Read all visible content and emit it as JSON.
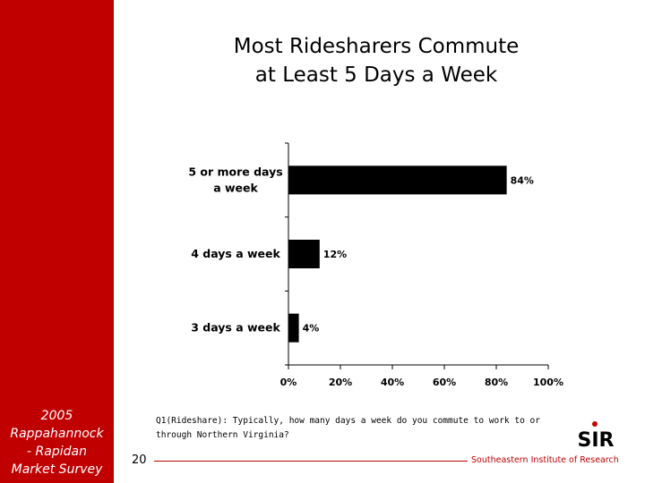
{
  "slide": {
    "title_line1": "Most Ridesharers Commute",
    "title_line2": "at Least 5 Days a Week",
    "sidebar_caption": [
      "2005",
      "Rappahannock",
      "- Rapidan",
      "Market Survey"
    ],
    "footnote": "Q1(Rideshare): Typically, how many days a week do you commute to work to or through Northern Virginia?",
    "page_number": "20",
    "org_name": "Southeastern Institute of Research",
    "logo_text": "SIR"
  },
  "colors": {
    "sidebar": "#c00000",
    "bar": "#000000",
    "accent": "#c00000"
  },
  "chart_data": {
    "type": "bar",
    "orientation": "horizontal",
    "title": "",
    "xlabel": "",
    "ylabel": "",
    "categories": [
      [
        "5 or more days",
        "a week"
      ],
      [
        "4 days a week"
      ],
      [
        "3 days a week"
      ]
    ],
    "values": [
      84,
      12,
      4
    ],
    "data_labels": [
      "84%",
      "12%",
      "4%"
    ],
    "xlim": [
      0,
      100
    ],
    "xticks": [
      0,
      20,
      40,
      60,
      80,
      100
    ],
    "xtick_labels": [
      "0%",
      "20%",
      "40%",
      "60%",
      "80%",
      "100%"
    ],
    "grid": false,
    "legend": "none"
  }
}
